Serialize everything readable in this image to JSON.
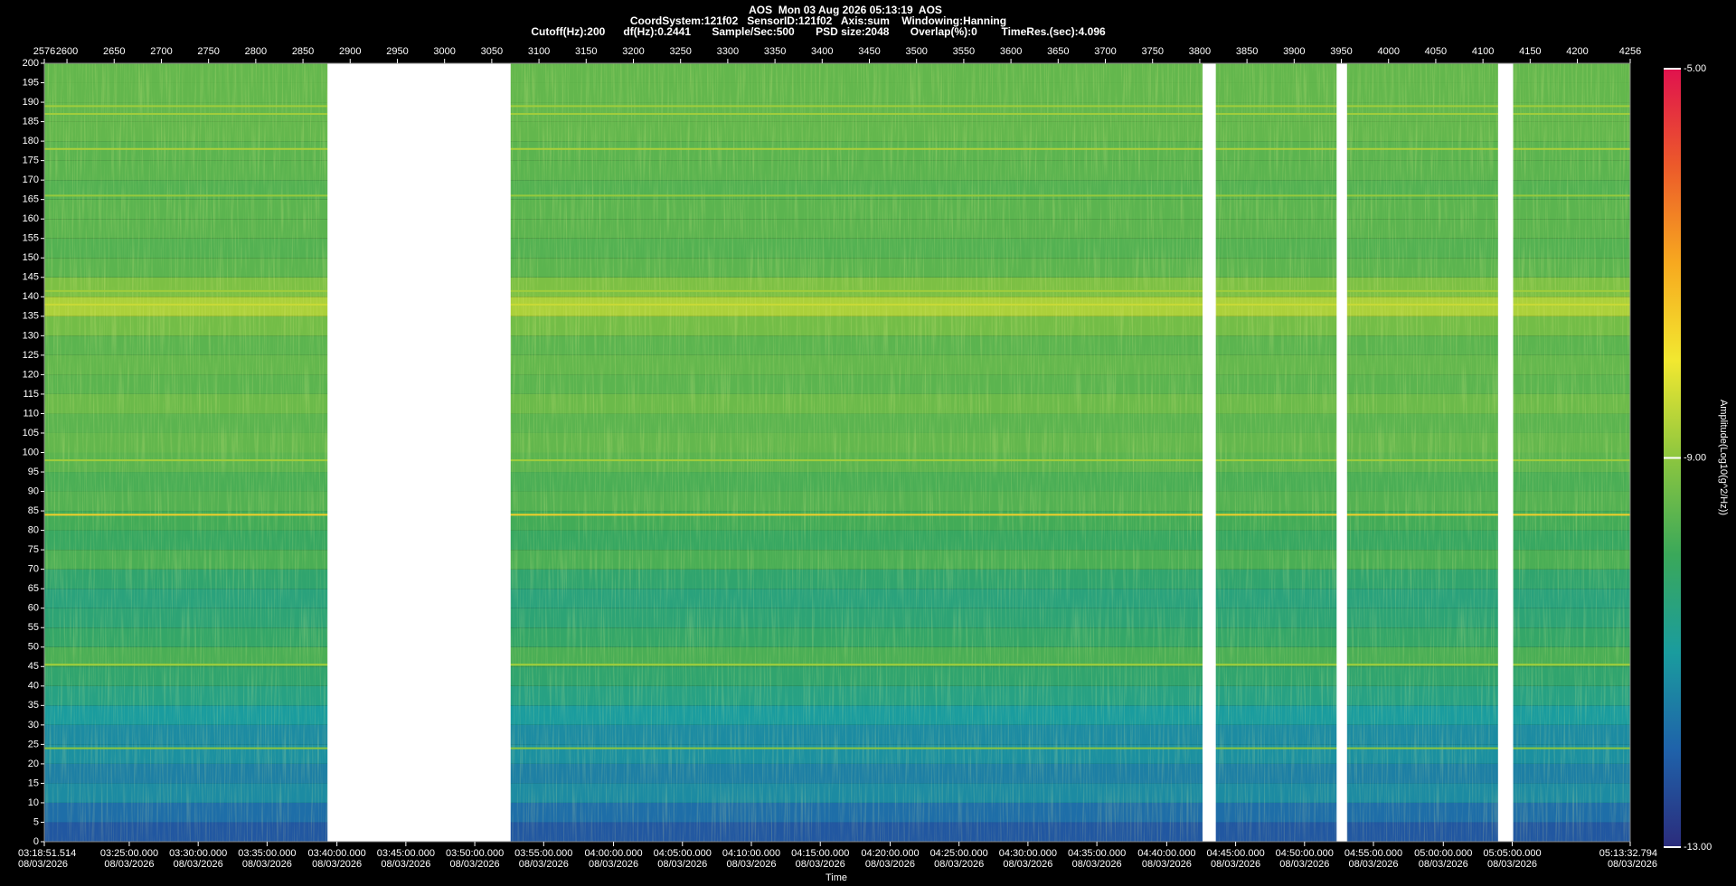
{
  "chart_data": {
    "type": "spectrogram",
    "title": "AOS  Mon 03 Aug 2026 05:13:19  AOS",
    "subtitle": "CoordSystem:121f02   SensorID:121f02   Axis:sum    Windowing:Hanning",
    "subtitle2": "Cutoff(Hz):200      df(Hz):0.2441       Sample/Sec:500       PSD size:2048       Overlap(%):0        TimeRes.(sec):4.096",
    "xlabel": "Time",
    "colorbar_label": "Amplitude(Log10(g^2/Hz))",
    "xlim": [
      2576,
      4256
    ],
    "xticks": [
      2576,
      2600,
      2650,
      2700,
      2750,
      2800,
      2850,
      2900,
      2950,
      3000,
      3050,
      3100,
      3150,
      3200,
      3250,
      3300,
      3350,
      3400,
      3450,
      3500,
      3550,
      3600,
      3650,
      3700,
      3750,
      3800,
      3850,
      3900,
      3950,
      4000,
      4050,
      4100,
      4150,
      4200,
      4256
    ],
    "time_ticks": [
      {
        "value": 2576,
        "label": "03:18:51.514",
        "date": "08/03/2026"
      },
      {
        "value": 2666,
        "label": "03:25:00.000",
        "date": "08/03/2026"
      },
      {
        "value": 2739,
        "label": "03:30:00.000",
        "date": "08/03/2026"
      },
      {
        "value": 2812,
        "label": "03:35:00.000",
        "date": "08/03/2026"
      },
      {
        "value": 2886,
        "label": "03:40:00.000",
        "date": "08/03/2026"
      },
      {
        "value": 2959,
        "label": "03:45:00.000",
        "date": "08/03/2026"
      },
      {
        "value": 3032,
        "label": "03:50:00.000",
        "date": "08/03/2026"
      },
      {
        "value": 3105,
        "label": "03:55:00.000",
        "date": "08/03/2026"
      },
      {
        "value": 3179,
        "label": "04:00:00.000",
        "date": "08/03/2026"
      },
      {
        "value": 3252,
        "label": "04:05:00.000",
        "date": "08/03/2026"
      },
      {
        "value": 3325,
        "label": "04:10:00.000",
        "date": "08/03/2026"
      },
      {
        "value": 3398,
        "label": "04:15:00.000",
        "date": "08/03/2026"
      },
      {
        "value": 3472,
        "label": "04:20:00.000",
        "date": "08/03/2026"
      },
      {
        "value": 3545,
        "label": "04:25:00.000",
        "date": "08/03/2026"
      },
      {
        "value": 3618,
        "label": "04:30:00.000",
        "date": "08/03/2026"
      },
      {
        "value": 3691,
        "label": "04:35:00.000",
        "date": "08/03/2026"
      },
      {
        "value": 3765,
        "label": "04:40:00.000",
        "date": "08/03/2026"
      },
      {
        "value": 3838,
        "label": "04:45:00.000",
        "date": "08/03/2026"
      },
      {
        "value": 3911,
        "label": "04:50:00.000",
        "date": "08/03/2026"
      },
      {
        "value": 3984,
        "label": "04:55:00.000",
        "date": "08/03/2026"
      },
      {
        "value": 4058,
        "label": "05:00:00.000",
        "date": "08/03/2026"
      },
      {
        "value": 4131,
        "label": "05:05:00.000",
        "date": "08/03/2026"
      },
      {
        "value": 4256,
        "label": "05:13:32.794",
        "date": "08/03/2026"
      }
    ],
    "ylim": [
      0,
      200
    ],
    "yticks": [
      0,
      5,
      10,
      15,
      20,
      25,
      30,
      35,
      40,
      45,
      50,
      55,
      60,
      65,
      70,
      75,
      80,
      85,
      90,
      95,
      100,
      105,
      110,
      115,
      120,
      125,
      130,
      135,
      140,
      145,
      150,
      155,
      160,
      165,
      170,
      175,
      180,
      185,
      190,
      195,
      200
    ],
    "clim": [
      -13,
      -5
    ],
    "cticks": [
      {
        "value": -5,
        "label": "-5.00"
      },
      {
        "value": -9,
        "label": "-9.00"
      },
      {
        "value": -13,
        "label": "-13.00"
      }
    ],
    "colormap": [
      "#2b2c7c",
      "#1f62aa",
      "#1a9c9e",
      "#3aa85a",
      "#8cc63f",
      "#f2e830",
      "#f7a91f",
      "#ec5a2a",
      "#e0124e"
    ],
    "y": [
      2.5,
      7.5,
      12.5,
      17.5,
      22.5,
      27.5,
      32.5,
      37.5,
      42.5,
      47.5,
      52.5,
      57.5,
      62.5,
      67.5,
      72.5,
      77.5,
      82.5,
      87.5,
      92.5,
      97.5,
      102.5,
      107.5,
      112.5,
      117.5,
      122.5,
      127.5,
      132.5,
      137.5,
      142.5,
      147.5,
      152.5,
      157.5,
      162.5,
      167.5,
      172.5,
      177.5,
      182.5,
      187.5,
      192.5,
      197.5
    ],
    "amplitude": [
      -12.2,
      -11.8,
      -11.3,
      -11.5,
      -11.2,
      -11.3,
      -11.0,
      -10.6,
      -10.3,
      -9.8,
      -10.2,
      -10.4,
      -10.5,
      -10.3,
      -9.8,
      -10.1,
      -9.9,
      -9.7,
      -9.8,
      -9.6,
      -9.5,
      -9.6,
      -9.4,
      -9.6,
      -9.5,
      -9.6,
      -9.3,
      -8.7,
      -9.2,
      -9.6,
      -9.7,
      -9.6,
      -9.6,
      -9.7,
      -9.6,
      -9.6,
      -9.5,
      -9.5,
      -9.5,
      -9.5
    ],
    "tonal_frequencies": [
      189,
      187,
      178,
      166,
      141.5,
      138,
      98,
      84,
      45.5,
      24
    ],
    "tonal_amplitudes": [
      -8.8,
      -8.8,
      -8.7,
      -8.9,
      -8.8,
      -8.4,
      -8.8,
      -7.6,
      -8.8,
      -9.0
    ],
    "gaps": [
      [
        2876,
        3070
      ],
      [
        3803,
        3817
      ],
      [
        3945,
        3956
      ],
      [
        4116,
        4132
      ]
    ]
  }
}
